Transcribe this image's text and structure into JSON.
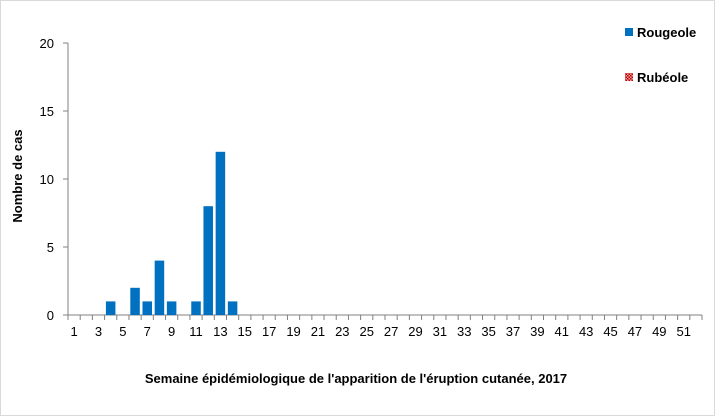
{
  "chart_data": {
    "type": "bar",
    "xlabel": "Semaine épidémiologique de l'apparition de l'éruption cutanée, 2017",
    "ylabel": "Nombre de cas",
    "ylim": [
      0,
      20
    ],
    "yticks": [
      0,
      5,
      10,
      15,
      20
    ],
    "x": [
      1,
      2,
      3,
      4,
      5,
      6,
      7,
      8,
      9,
      10,
      11,
      12,
      13,
      14,
      15,
      16,
      17,
      18,
      19,
      20,
      21,
      22,
      23,
      24,
      25,
      26,
      27,
      28,
      29,
      30,
      31,
      32,
      33,
      34,
      35,
      36,
      37,
      38,
      39,
      40,
      41,
      42,
      43,
      44,
      45,
      46,
      47,
      48,
      49,
      50,
      51,
      52
    ],
    "x_tick_labels": [
      "1",
      "3",
      "5",
      "7",
      "9",
      "11",
      "13",
      "15",
      "17",
      "19",
      "21",
      "23",
      "25",
      "27",
      "29",
      "31",
      "33",
      "35",
      "37",
      "39",
      "41",
      "43",
      "45",
      "47",
      "49",
      "51"
    ],
    "series": [
      {
        "name": "Rougeole",
        "color": "#0070C0",
        "values": [
          0,
          0,
          0,
          1,
          0,
          2,
          1,
          4,
          1,
          0,
          1,
          8,
          12,
          1,
          0,
          0,
          0,
          0,
          0,
          0,
          0,
          0,
          0,
          0,
          0,
          0,
          0,
          0,
          0,
          0,
          0,
          0,
          0,
          0,
          0,
          0,
          0,
          0,
          0,
          0,
          0,
          0,
          0,
          0,
          0,
          0,
          0,
          0,
          0,
          0,
          0,
          0
        ]
      },
      {
        "name": "Rubéole",
        "color": "#C00000",
        "pattern": "checker",
        "values": [
          0,
          0,
          0,
          0,
          0,
          0,
          0,
          0,
          0,
          0,
          0,
          0,
          0,
          0,
          0,
          0,
          0,
          0,
          0,
          0,
          0,
          0,
          0,
          0,
          0,
          0,
          0,
          0,
          0,
          0,
          0,
          0,
          0,
          0,
          0,
          0,
          0,
          0,
          0,
          0,
          0,
          0,
          0,
          0,
          0,
          0,
          0,
          0,
          0,
          0,
          0,
          0
        ]
      }
    ],
    "legend": "top-right",
    "grid": false
  }
}
